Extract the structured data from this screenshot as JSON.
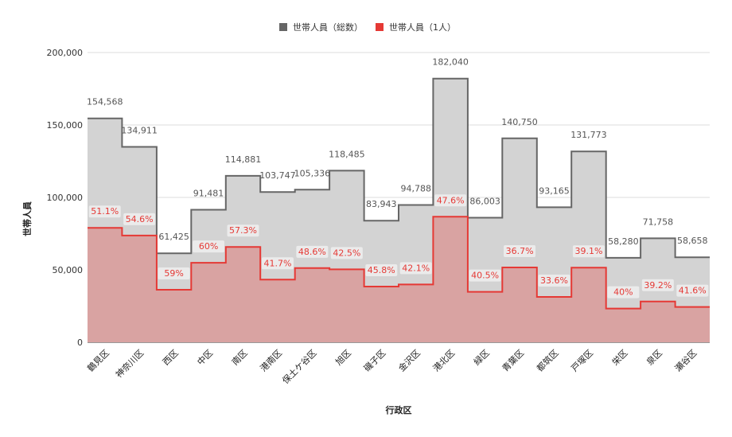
{
  "chart_data": {
    "type": "area",
    "step": true,
    "title": "",
    "xlabel": "行政区",
    "ylabel": "世帯人員",
    "ylim": [
      0,
      200000
    ],
    "yticks": [
      0,
      50000,
      100000,
      150000,
      200000
    ],
    "ytick_labels": [
      "0",
      "50,000",
      "100,000",
      "150,000",
      "200,000"
    ],
    "grid": true,
    "legend_position": "top",
    "categories": [
      "鶴見区",
      "神奈川区",
      "西区",
      "中区",
      "南区",
      "港南区",
      "保土ケ谷区",
      "旭区",
      "磯子区",
      "金沢区",
      "港北区",
      "緑区",
      "青葉区",
      "都筑区",
      "戸塚区",
      "栄区",
      "泉区",
      "瀬谷区"
    ],
    "series": [
      {
        "name": "世帯人員（総数）",
        "color": "#666666",
        "fill": "#d3d3d3",
        "values": [
          154568,
          134911,
          61425,
          91481,
          114881,
          103747,
          105336,
          118485,
          83943,
          94788,
          182040,
          86003,
          140750,
          93165,
          131773,
          58280,
          71758,
          58658
        ],
        "labels": [
          "154,568",
          "134,911",
          "61,425",
          "91,481",
          "114,881",
          "103,747",
          "105,336",
          "118,485",
          "83,943",
          "94,788",
          "182,040",
          "86,003",
          "140,750",
          "93,165",
          "131,773",
          "58,280",
          "71,758",
          "58,658"
        ]
      },
      {
        "name": "世帯人員（1人）",
        "color": "#e53935",
        "fill": "#d9a3a2",
        "values": [
          78984,
          73661,
          36240,
          54889,
          65827,
          43263,
          51193,
          50356,
          38446,
          39906,
          86651,
          34831,
          51655,
          31303,
          51523,
          23312,
          28129,
          24402
        ],
        "labels": [
          "51.1%",
          "54.6%",
          "59%",
          "60%",
          "57.3%",
          "41.7%",
          "48.6%",
          "42.5%",
          "45.8%",
          "42.1%",
          "47.6%",
          "40.5%",
          "36.7%",
          "33.6%",
          "39.1%",
          "40%",
          "39.2%",
          "41.6%"
        ]
      }
    ]
  }
}
